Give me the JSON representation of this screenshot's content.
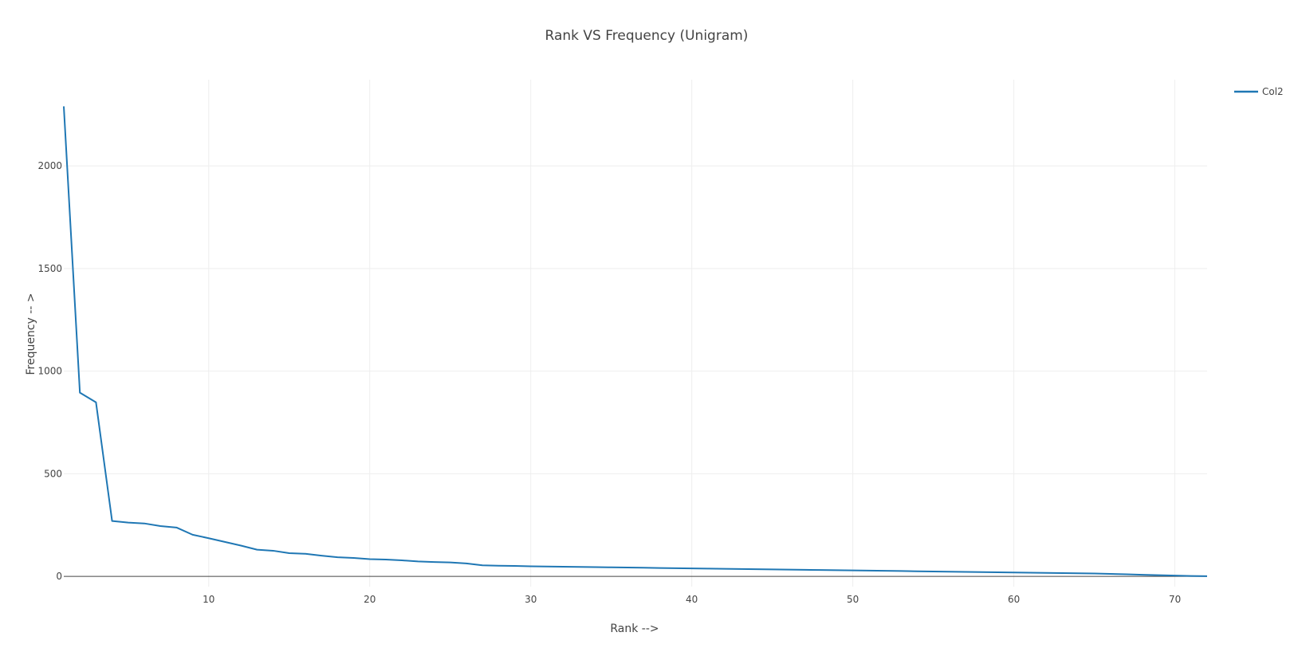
{
  "chart_data": {
    "type": "line",
    "title": "Rank VS Frequency (Unigram)",
    "xlabel": "Rank -->",
    "ylabel": "Frequency -- >",
    "xlim": [
      1,
      72
    ],
    "ylim": [
      -50,
      2420
    ],
    "x_ticks": [
      10,
      20,
      30,
      40,
      50,
      60,
      70
    ],
    "y_ticks": [
      0,
      500,
      1000,
      1500,
      2000
    ],
    "grid": true,
    "legend_position": "top-right",
    "series": [
      {
        "name": "Col2",
        "color": "#1f77b4",
        "x": [
          1,
          2,
          3,
          4,
          5,
          6,
          7,
          8,
          9,
          10,
          11,
          12,
          13,
          14,
          15,
          16,
          17,
          18,
          19,
          20,
          21,
          22,
          23,
          24,
          25,
          26,
          27,
          28,
          29,
          30,
          31,
          32,
          33,
          34,
          35,
          36,
          37,
          38,
          39,
          40,
          41,
          42,
          43,
          44,
          45,
          46,
          47,
          48,
          49,
          50,
          51,
          52,
          53,
          54,
          55,
          56,
          57,
          58,
          59,
          60,
          61,
          62,
          63,
          64,
          65,
          66,
          67,
          68,
          69,
          70,
          71,
          72
        ],
        "values": [
          2290,
          895,
          848,
          270,
          262,
          258,
          245,
          238,
          203,
          186,
          168,
          150,
          130,
          125,
          113,
          110,
          101,
          93,
          90,
          84,
          82,
          78,
          73,
          70,
          68,
          63,
          54,
          52,
          51,
          49,
          48,
          47,
          46,
          45,
          44,
          43,
          42,
          41,
          40,
          39,
          38,
          37,
          36,
          35,
          34,
          33,
          32,
          31,
          30,
          29,
          28,
          27,
          26,
          25,
          24,
          23,
          22,
          21,
          20,
          19,
          18,
          17,
          16,
          15,
          14,
          12,
          10,
          8,
          6,
          4,
          2,
          1
        ]
      }
    ]
  }
}
